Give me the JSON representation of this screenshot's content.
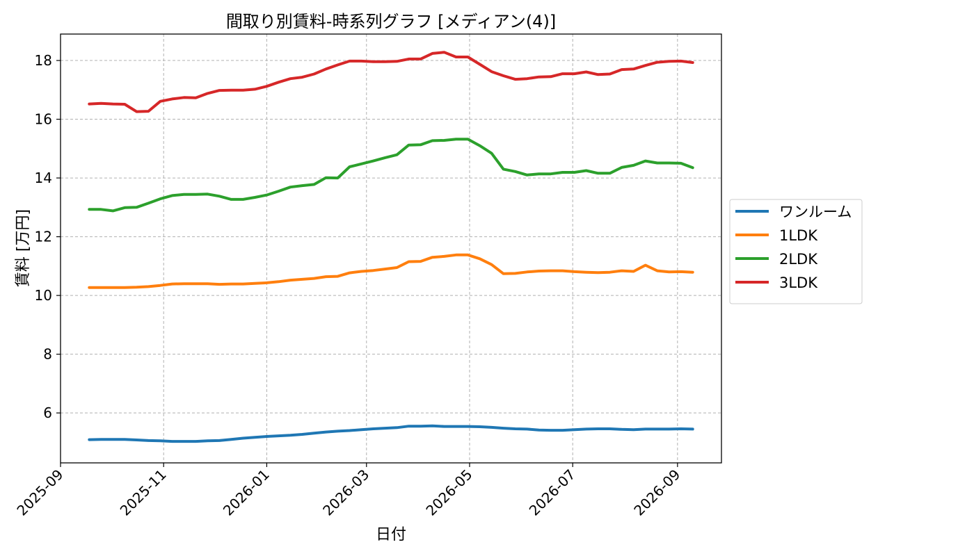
{
  "chart_data": {
    "type": "line",
    "title": "間取り別賃料-時系列グラフ [メディアン(4)]",
    "xlabel": "日付",
    "ylabel": "賃料 [万円]",
    "xlim": [
      "2025-09-01",
      "2026-09-27"
    ],
    "ylim": [
      4.3,
      18.9
    ],
    "x_ticks": [
      "2025-09",
      "2025-11",
      "2026-01",
      "2026-03",
      "2026-05",
      "2026-07",
      "2026-09"
    ],
    "y_ticks": [
      6,
      8,
      10,
      12,
      14,
      16,
      18
    ],
    "grid": true,
    "legend_position": "right-outside",
    "x": [
      "2025-09-18",
      "2025-09-25",
      "2025-10-02",
      "2025-10-09",
      "2025-10-16",
      "2025-10-23",
      "2025-10-30",
      "2025-11-06",
      "2025-11-13",
      "2025-11-20",
      "2025-11-27",
      "2025-12-04",
      "2025-12-11",
      "2025-12-18",
      "2025-12-25",
      "2026-01-01",
      "2026-01-08",
      "2026-01-15",
      "2026-01-22",
      "2026-01-29",
      "2026-02-05",
      "2026-02-12",
      "2026-02-19",
      "2026-02-26",
      "2026-03-05",
      "2026-03-12",
      "2026-03-19",
      "2026-03-26",
      "2026-04-02",
      "2026-04-09",
      "2026-04-16",
      "2026-04-23",
      "2026-04-30",
      "2026-05-07",
      "2026-05-14",
      "2026-05-21",
      "2026-05-28",
      "2026-06-04",
      "2026-06-11",
      "2026-06-18",
      "2026-06-25",
      "2026-07-02",
      "2026-07-09",
      "2026-07-16",
      "2026-07-23",
      "2026-07-30",
      "2026-08-06",
      "2026-08-13",
      "2026-08-20",
      "2026-08-27",
      "2026-09-03",
      "2026-09-10"
    ],
    "series": [
      {
        "name": "ワンルーム",
        "color": "#1f77b4",
        "values": [
          5.09,
          5.1,
          5.1,
          5.1,
          5.08,
          5.06,
          5.05,
          5.03,
          5.03,
          5.03,
          5.05,
          5.06,
          5.1,
          5.14,
          5.17,
          5.2,
          5.22,
          5.24,
          5.27,
          5.31,
          5.35,
          5.38,
          5.4,
          5.43,
          5.46,
          5.48,
          5.5,
          5.55,
          5.55,
          5.56,
          5.54,
          5.54,
          5.54,
          5.53,
          5.51,
          5.48,
          5.46,
          5.45,
          5.42,
          5.41,
          5.41,
          5.43,
          5.45,
          5.46,
          5.46,
          5.44,
          5.43,
          5.45,
          5.45,
          5.45,
          5.46,
          5.45
        ]
      },
      {
        "name": "1LDK",
        "color": "#ff7f0e",
        "values": [
          10.27,
          10.27,
          10.27,
          10.27,
          10.28,
          10.3,
          10.34,
          10.39,
          10.4,
          10.4,
          10.4,
          10.38,
          10.39,
          10.39,
          10.41,
          10.43,
          10.47,
          10.52,
          10.55,
          10.58,
          10.64,
          10.65,
          10.77,
          10.82,
          10.85,
          10.9,
          10.95,
          11.15,
          11.16,
          11.3,
          11.33,
          11.38,
          11.38,
          11.25,
          11.05,
          10.74,
          10.75,
          10.8,
          10.83,
          10.84,
          10.84,
          10.81,
          10.79,
          10.78,
          10.79,
          10.84,
          10.82,
          11.03,
          10.84,
          10.8,
          10.81,
          10.79
        ]
      },
      {
        "name": "2LDK",
        "color": "#2ca02c",
        "values": [
          12.93,
          12.93,
          12.88,
          12.99,
          13.0,
          13.14,
          13.29,
          13.4,
          13.44,
          13.44,
          13.45,
          13.38,
          13.27,
          13.27,
          13.34,
          13.42,
          13.55,
          13.69,
          13.74,
          13.78,
          14.01,
          14.0,
          14.38,
          14.48,
          14.58,
          14.69,
          14.79,
          15.12,
          15.13,
          15.27,
          15.28,
          15.32,
          15.32,
          15.1,
          14.84,
          14.3,
          14.22,
          14.1,
          14.14,
          14.14,
          14.19,
          14.19,
          14.25,
          14.16,
          14.16,
          14.36,
          14.43,
          14.58,
          14.51,
          14.51,
          14.5,
          14.35
        ]
      },
      {
        "name": "3LDK",
        "color": "#d62728",
        "values": [
          16.52,
          16.54,
          16.52,
          16.51,
          16.26,
          16.27,
          16.61,
          16.69,
          16.74,
          16.73,
          16.88,
          16.98,
          16.99,
          16.99,
          17.02,
          17.12,
          17.26,
          17.38,
          17.43,
          17.54,
          17.71,
          17.85,
          17.98,
          17.98,
          17.96,
          17.96,
          17.97,
          18.05,
          18.05,
          18.24,
          18.28,
          18.12,
          18.12,
          17.87,
          17.62,
          17.48,
          17.36,
          17.38,
          17.44,
          17.45,
          17.55,
          17.55,
          17.61,
          17.52,
          17.54,
          17.69,
          17.71,
          17.83,
          17.94,
          17.97,
          17.98,
          17.93
        ]
      }
    ]
  }
}
